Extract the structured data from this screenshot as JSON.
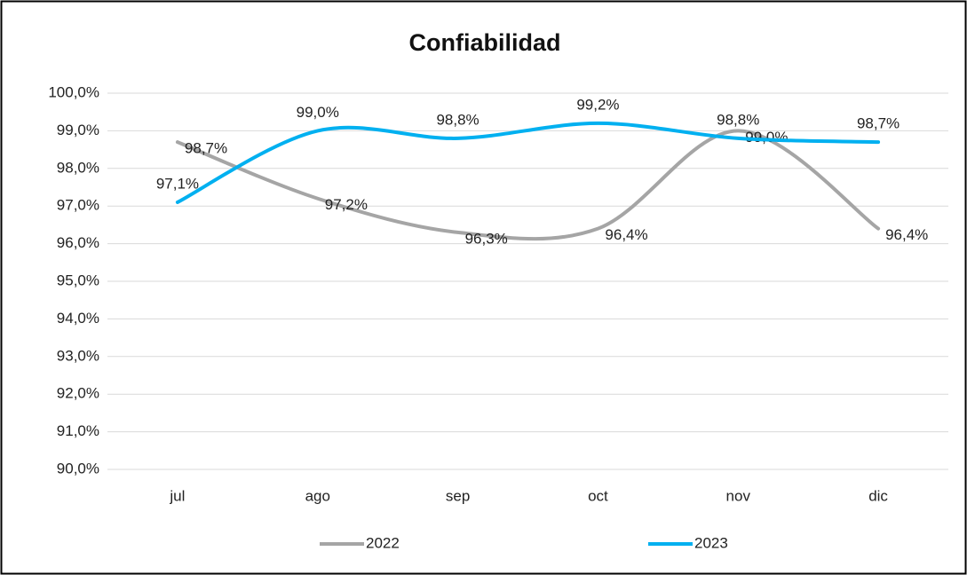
{
  "chart_data": {
    "type": "line",
    "title": "Confiabilidad",
    "categories": [
      "jul",
      "ago",
      "sep",
      "oct",
      "nov",
      "dic"
    ],
    "series": [
      {
        "name": "2022",
        "color": "#a5a5a5",
        "values": [
          98.7,
          97.2,
          96.3,
          96.4,
          99.0,
          96.4
        ],
        "value_labels": [
          "98,7%",
          "97,2%",
          "96,3%",
          "96,4%",
          "99,0%",
          "96,4%"
        ]
      },
      {
        "name": "2023",
        "color": "#00b0f0",
        "values": [
          97.1,
          99.0,
          98.8,
          99.2,
          98.8,
          98.7
        ],
        "value_labels": [
          "97,1%",
          "99,0%",
          "98,8%",
          "99,2%",
          "98,8%",
          "98,7%"
        ]
      }
    ],
    "ylim": [
      90,
      100
    ],
    "yticks": [
      {
        "value": 90,
        "label": "90,0%"
      },
      {
        "value": 91,
        "label": "91,0%"
      },
      {
        "value": 92,
        "label": "92,0%"
      },
      {
        "value": 93,
        "label": "93,0%"
      },
      {
        "value": 94,
        "label": "94,0%"
      },
      {
        "value": 95,
        "label": "95,0%"
      },
      {
        "value": 96,
        "label": "96,0%"
      },
      {
        "value": 97,
        "label": "97,0%"
      },
      {
        "value": 98,
        "label": "98,0%"
      },
      {
        "value": 99,
        "label": "99,0%"
      },
      {
        "value": 100,
        "label": "100,0%"
      }
    ],
    "grid": true,
    "smooth": true,
    "legend": "bottom"
  }
}
